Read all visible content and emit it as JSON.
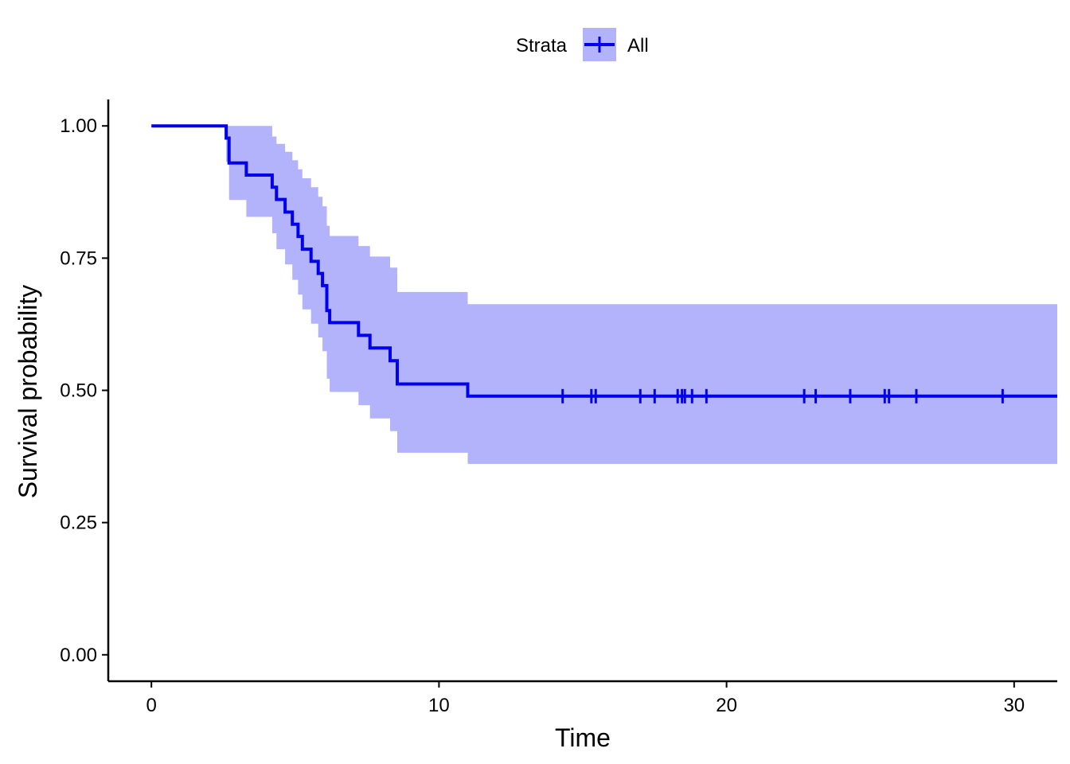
{
  "chart_data": {
    "type": "line",
    "subtype": "kaplan-meier",
    "title": "",
    "xlabel": "Time",
    "ylabel": "Survival probability",
    "xlim": [
      -1.5,
      31.5
    ],
    "ylim": [
      -0.05,
      1.05
    ],
    "x_ticks": [
      0,
      10,
      20,
      30
    ],
    "y_ticks": [
      0.0,
      0.25,
      0.5,
      0.75,
      1.0
    ],
    "x_tick_labels": [
      "0",
      "10",
      "20",
      "30"
    ],
    "y_tick_labels": [
      "0.00",
      "0.25",
      "0.50",
      "0.75",
      "1.00"
    ],
    "grid": false,
    "legend": {
      "position": "top",
      "title": "Strata",
      "entries": [
        "All"
      ]
    },
    "colors": {
      "line": "#0000ee",
      "band": "#b3b3fb"
    },
    "series": [
      {
        "name": "All",
        "steps": [
          {
            "x": 0.0,
            "y": 1.0,
            "lower": 1.0,
            "upper": 1.0
          },
          {
            "x": 2.6,
            "y": 0.977,
            "lower": 0.932,
            "upper": 1.0
          },
          {
            "x": 2.7,
            "y": 0.93,
            "lower": 0.86,
            "upper": 1.0
          },
          {
            "x": 3.3,
            "y": 0.907,
            "lower": 0.828,
            "upper": 1.0
          },
          {
            "x": 4.2,
            "y": 0.884,
            "lower": 0.797,
            "upper": 0.98
          },
          {
            "x": 4.35,
            "y": 0.861,
            "lower": 0.767,
            "upper": 0.966
          },
          {
            "x": 4.65,
            "y": 0.837,
            "lower": 0.738,
            "upper": 0.951
          },
          {
            "x": 4.9,
            "y": 0.814,
            "lower": 0.709,
            "upper": 0.935
          },
          {
            "x": 5.1,
            "y": 0.791,
            "lower": 0.681,
            "upper": 0.918
          },
          {
            "x": 5.25,
            "y": 0.767,
            "lower": 0.653,
            "upper": 0.901
          },
          {
            "x": 5.55,
            "y": 0.744,
            "lower": 0.626,
            "upper": 0.884
          },
          {
            "x": 5.8,
            "y": 0.721,
            "lower": 0.6,
            "upper": 0.866
          },
          {
            "x": 5.95,
            "y": 0.698,
            "lower": 0.574,
            "upper": 0.848
          },
          {
            "x": 6.1,
            "y": 0.651,
            "lower": 0.522,
            "upper": 0.811
          },
          {
            "x": 6.2,
            "y": 0.628,
            "lower": 0.497,
            "upper": 0.792
          },
          {
            "x": 7.2,
            "y": 0.604,
            "lower": 0.472,
            "upper": 0.773
          },
          {
            "x": 7.6,
            "y": 0.58,
            "lower": 0.447,
            "upper": 0.753
          },
          {
            "x": 8.3,
            "y": 0.556,
            "lower": 0.423,
            "upper": 0.732
          },
          {
            "x": 8.55,
            "y": 0.512,
            "lower": 0.382,
            "upper": 0.686
          },
          {
            "x": 11.0,
            "y": 0.489,
            "lower": 0.361,
            "upper": 0.663
          }
        ],
        "x_end": 31.5,
        "censor_times": [
          14.3,
          15.3,
          15.45,
          17.0,
          17.5,
          18.3,
          18.45,
          18.55,
          18.8,
          19.3,
          22.7,
          23.1,
          24.3,
          25.5,
          25.65,
          26.6,
          29.6
        ]
      }
    ]
  }
}
